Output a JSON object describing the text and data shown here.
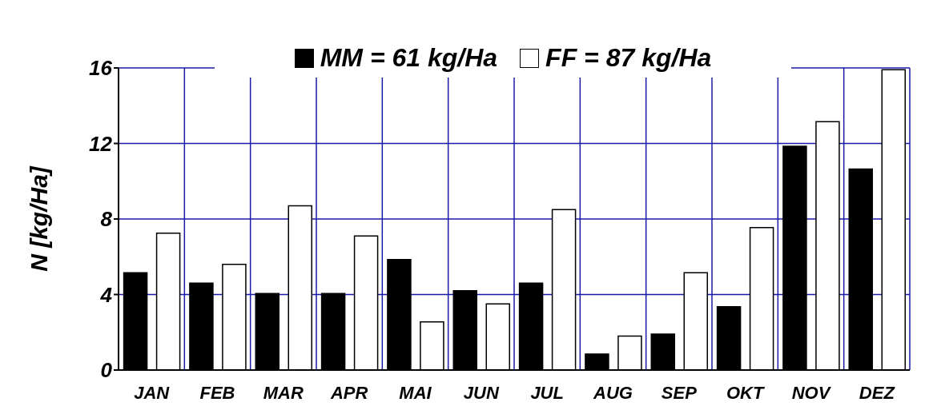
{
  "chart_data": {
    "type": "bar",
    "ylabel": "N [kg/Ha]",
    "categories": [
      "JAN",
      "FEB",
      "MAR",
      "APR",
      "MAI",
      "JUN",
      "JUL",
      "AUG",
      "SEP",
      "OKT",
      "NOV",
      "DEZ"
    ],
    "series": [
      {
        "name": "MM = 61 kg/Ha",
        "color": "#000000",
        "values": [
          5.15,
          4.6,
          4.05,
          4.05,
          5.85,
          4.2,
          4.6,
          0.85,
          1.9,
          3.35,
          11.85,
          10.65
        ]
      },
      {
        "name": "FF = 87 kg/Ha",
        "color": "#ffffff",
        "values": [
          7.25,
          5.6,
          8.7,
          7.1,
          2.55,
          3.5,
          8.5,
          1.8,
          5.15,
          7.55,
          13.15,
          15.9
        ]
      }
    ],
    "ylim": [
      0,
      16
    ],
    "yticks": [
      0,
      4,
      8,
      12,
      16
    ],
    "grid": true,
    "legend": "top"
  }
}
